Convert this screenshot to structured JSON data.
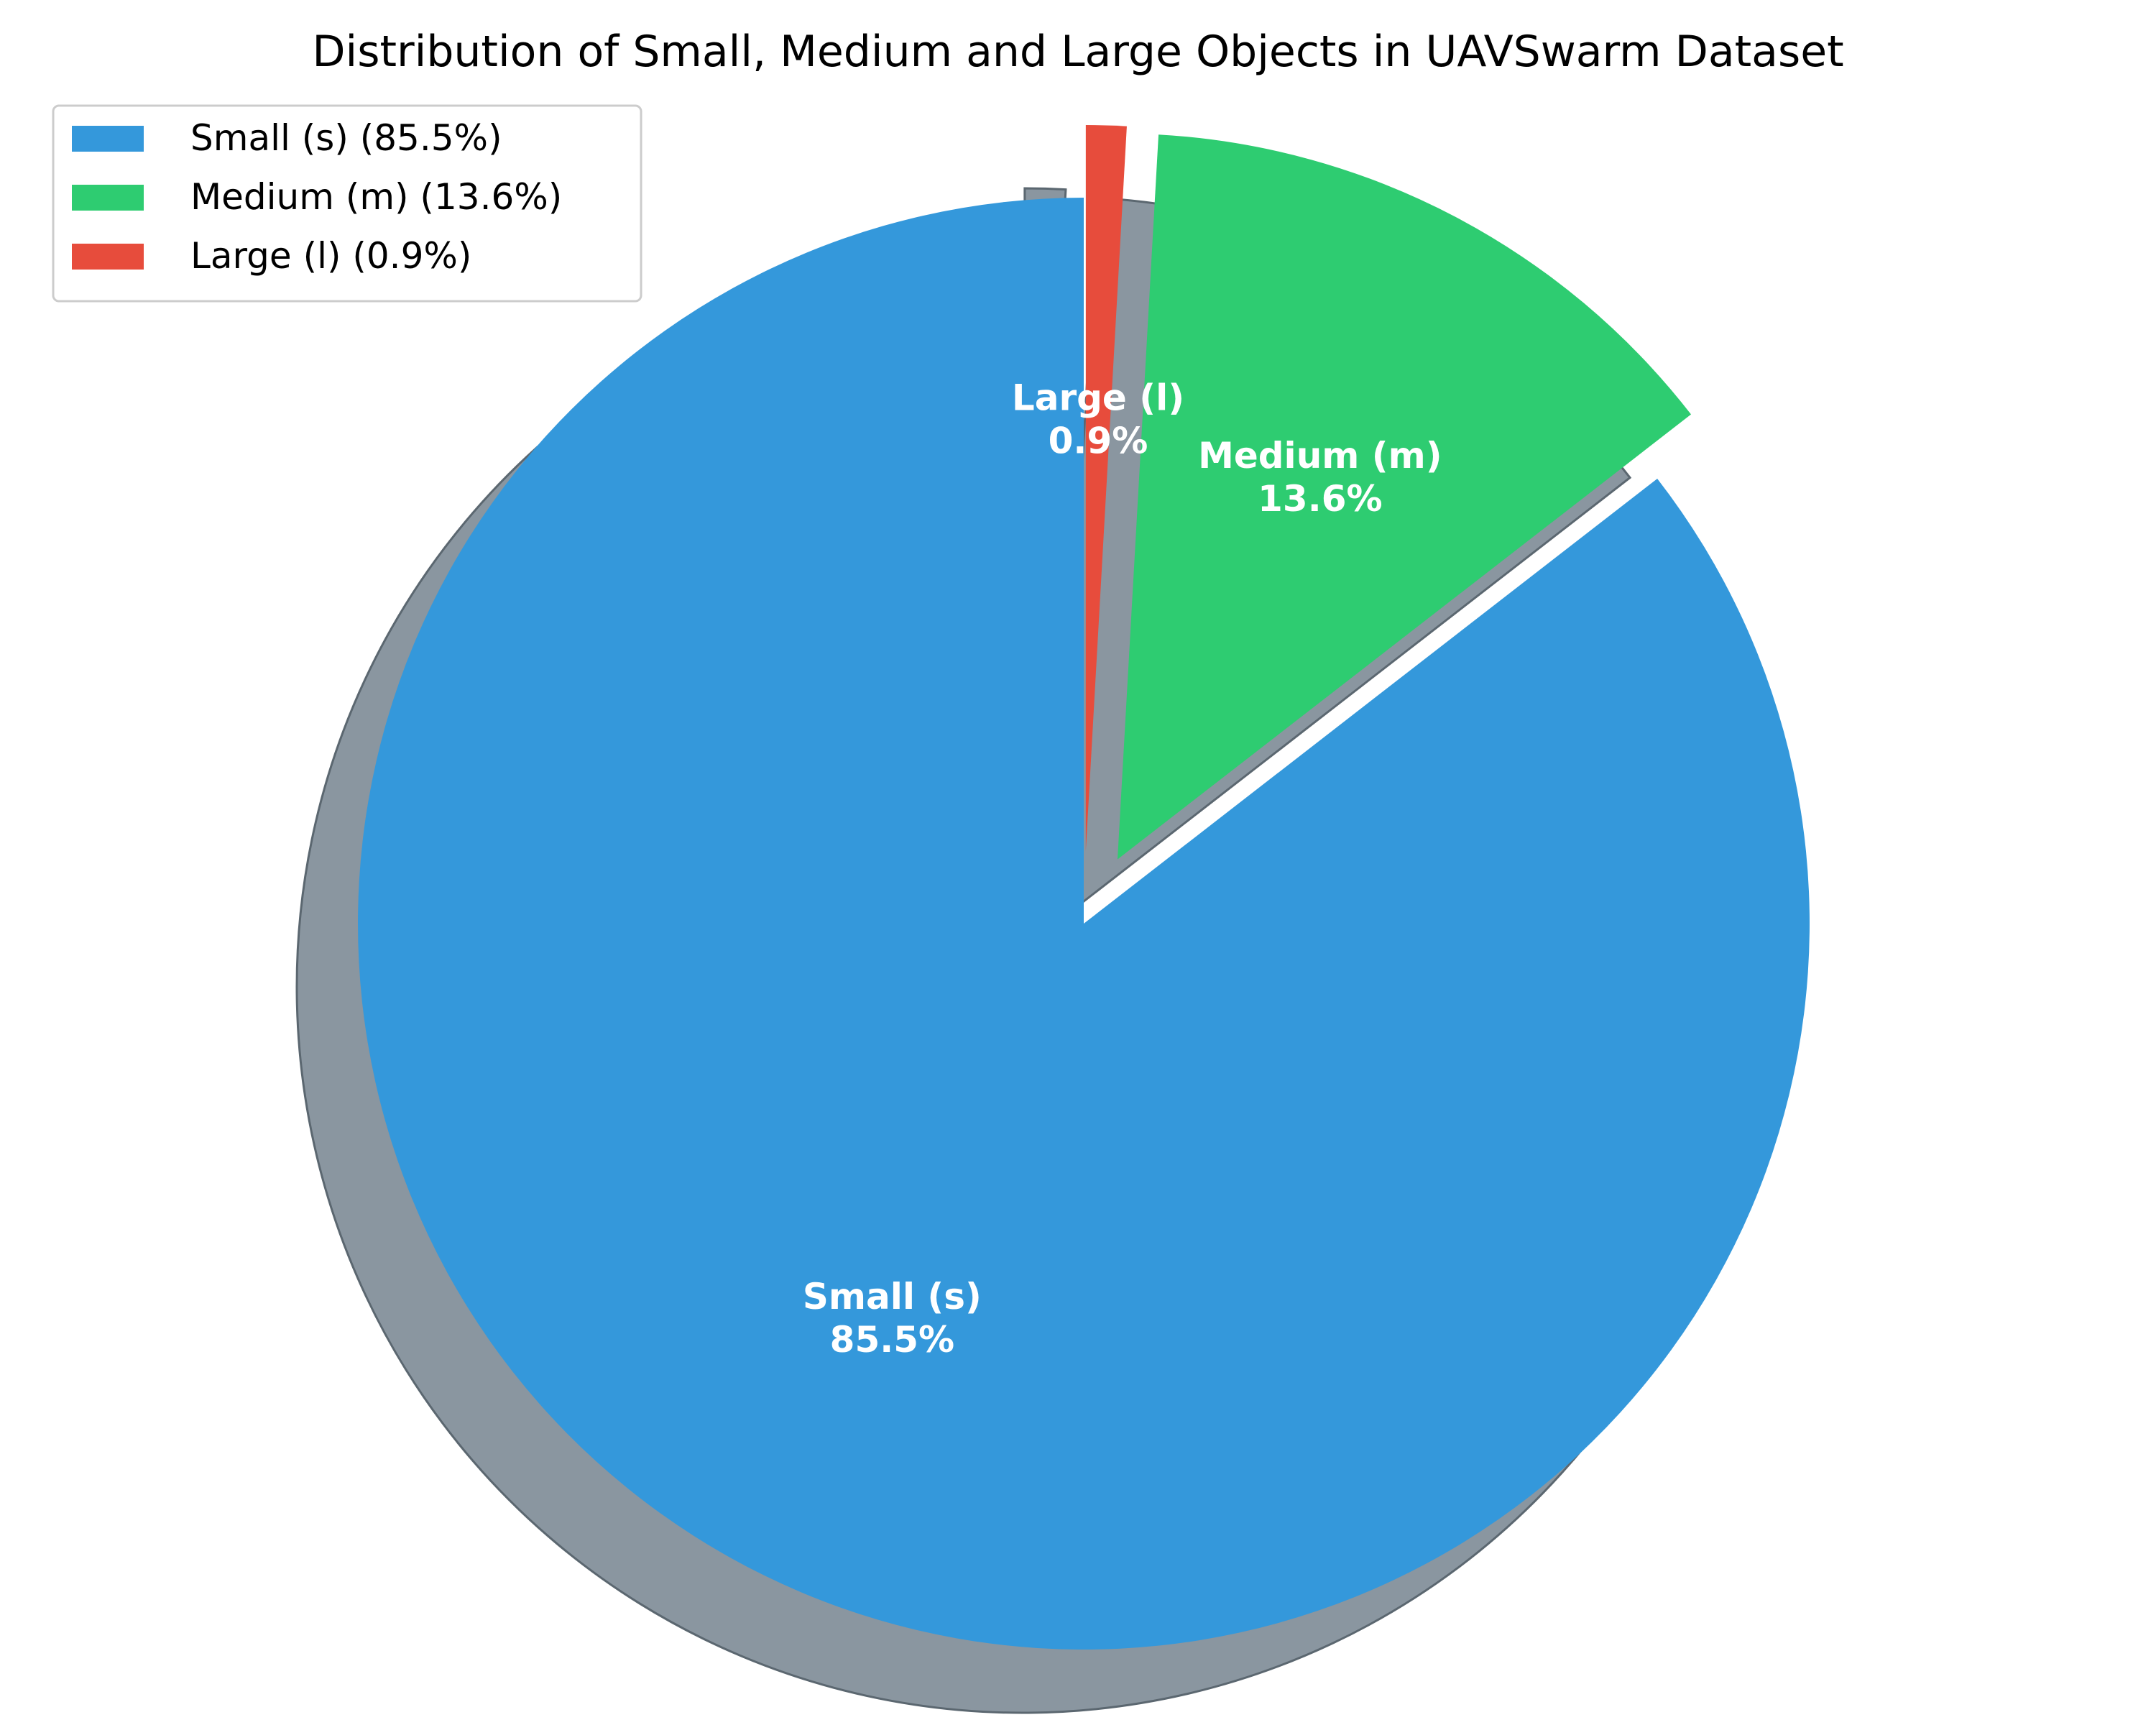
{
  "chart_data": {
    "type": "pie",
    "title": "Distribution of Small, Medium and Large Objects in UAVSwarm Dataset",
    "slices": [
      {
        "name": "Small (s)",
        "value": 85.5,
        "percent_label": "85.5%",
        "legend_label": "Small (s) (85.5%)",
        "color": "#3498db",
        "exploded": false
      },
      {
        "name": "Medium (m)",
        "value": 13.6,
        "percent_label": "13.6%",
        "legend_label": "Medium (m) (13.6%)",
        "color": "#2ecc71",
        "exploded": true
      },
      {
        "name": "Large (l)",
        "value": 0.9,
        "percent_label": "0.9%",
        "legend_label": "Large (l) (0.9%)",
        "color": "#e74c3c",
        "exploded": true
      }
    ],
    "start_angle": "top",
    "direction": "counterclockwise",
    "shadow": true,
    "legend_position": "upper-left",
    "label_color": "#ffffff",
    "shadow_color": "#8a96a0"
  }
}
